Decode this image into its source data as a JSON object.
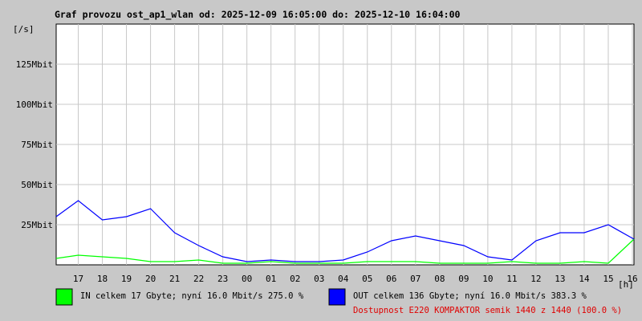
{
  "chart_data": {
    "type": "line",
    "title": "Graf provozu ost_ap1_wlan od: 2025-12-09 16:05:00 do: 2025-12-10 16:04:00",
    "ylabel": "[/s]",
    "xlabel": "[h]",
    "ylim": [
      0,
      150
    ],
    "y_unit": "Mbit",
    "y_ticks": [
      {
        "value": 25,
        "label": "25Mbit"
      },
      {
        "value": 50,
        "label": "50Mbit"
      },
      {
        "value": 75,
        "label": "75Mbit"
      },
      {
        "value": 100,
        "label": "100Mbit"
      },
      {
        "value": 125,
        "label": "125Mbit"
      }
    ],
    "x_range": [
      "2025-12-09 16:05",
      "2025-12-10 16:04"
    ],
    "x_ticks": [
      "17",
      "18",
      "19",
      "20",
      "21",
      "22",
      "23",
      "00",
      "01",
      "02",
      "03",
      "04",
      "05",
      "06",
      "07",
      "08",
      "09",
      "10",
      "11",
      "12",
      "13",
      "14",
      "15",
      "16"
    ],
    "grid": true,
    "series": [
      {
        "name": "IN",
        "color": "#00ff00",
        "x": [
          "2025-12-09 16:05",
          "2025-12-09 17:00",
          "2025-12-09 18:00",
          "2025-12-09 19:00",
          "2025-12-09 20:00",
          "2025-12-09 21:00",
          "2025-12-09 22:00",
          "2025-12-09 23:00",
          "2025-12-10 00:00",
          "2025-12-10 01:00",
          "2025-12-10 02:00",
          "2025-12-10 03:00",
          "2025-12-10 04:00",
          "2025-12-10 05:00",
          "2025-12-10 06:00",
          "2025-12-10 07:00",
          "2025-12-10 08:00",
          "2025-12-10 09:00",
          "2025-12-10 10:00",
          "2025-12-10 11:00",
          "2025-12-10 12:00",
          "2025-12-10 13:00",
          "2025-12-10 14:00",
          "2025-12-10 15:00",
          "2025-12-10 16:04"
        ],
        "values": [
          4,
          6,
          5,
          4,
          2,
          2,
          3,
          1,
          1,
          2,
          1,
          1,
          1,
          2,
          2,
          2,
          1,
          1,
          1,
          2,
          1,
          1,
          2,
          1,
          16
        ]
      },
      {
        "name": "OUT",
        "color": "#0000ff",
        "x": [
          "2025-12-09 16:05",
          "2025-12-09 17:00",
          "2025-12-09 18:00",
          "2025-12-09 19:00",
          "2025-12-09 20:00",
          "2025-12-09 21:00",
          "2025-12-09 22:00",
          "2025-12-09 23:00",
          "2025-12-10 00:00",
          "2025-12-10 01:00",
          "2025-12-10 02:00",
          "2025-12-10 03:00",
          "2025-12-10 04:00",
          "2025-12-10 05:00",
          "2025-12-10 06:00",
          "2025-12-10 07:00",
          "2025-12-10 08:00",
          "2025-12-10 09:00",
          "2025-12-10 10:00",
          "2025-12-10 11:00",
          "2025-12-10 12:00",
          "2025-12-10 13:00",
          "2025-12-10 14:00",
          "2025-12-10 15:00",
          "2025-12-10 16:04"
        ],
        "values": [
          30,
          40,
          28,
          30,
          35,
          20,
          12,
          5,
          2,
          3,
          2,
          2,
          3,
          8,
          15,
          18,
          15,
          12,
          5,
          3,
          15,
          20,
          20,
          25,
          16
        ]
      }
    ],
    "legend": [
      {
        "key": "in",
        "color": "#00ff00",
        "text": "IN celkem 17 Gbyte; nyní  16.0 Mbit/s 275.0 %"
      },
      {
        "key": "out",
        "color": "#0000ff",
        "text": "OUT celkem 136 Gbyte; nyní  16.0 Mbit/s 383.3 %"
      }
    ],
    "availability": "Dostupnost E220 KOMPAKTOR semik 1440 z 1440 (100.0 %)"
  }
}
